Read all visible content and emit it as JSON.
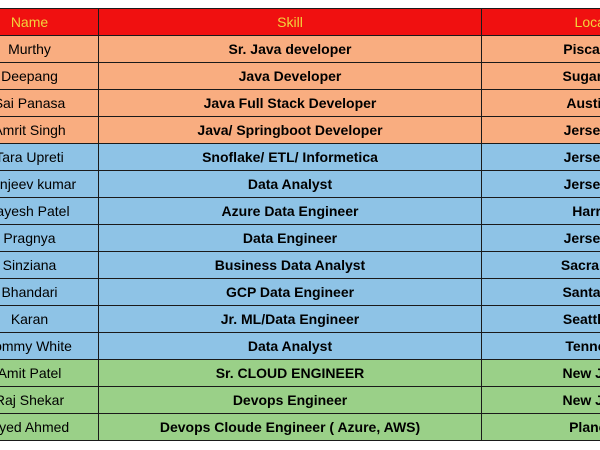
{
  "table": {
    "headers": {
      "name": "Name",
      "skill": "Skill",
      "location": "Location"
    },
    "rows": [
      {
        "name": "Murthy",
        "skill": "Sr. Java developer",
        "location": "Piscataway",
        "group": "orange"
      },
      {
        "name": "Deepang",
        "skill": "Java Developer",
        "location": "Sugar Land",
        "group": "orange"
      },
      {
        "name": "Sai Panasa",
        "skill": "Java Full Stack Developer",
        "location": "Austin, TX",
        "group": "orange"
      },
      {
        "name": "Amrit Singh",
        "skill": "Java/ Springboot Developer",
        "location": "Jersey City",
        "group": "orange"
      },
      {
        "name": "Tara Upreti",
        "skill": "Snoflake/ ETL/ Informetica",
        "location": "Jersey City",
        "group": "blue"
      },
      {
        "name": "Sanjeev kumar",
        "skill": "Data Analyst",
        "location": "Jersey City",
        "group": "blue"
      },
      {
        "name": "Jayesh Patel",
        "skill": "Azure Data Engineer",
        "location": "Harrison",
        "group": "blue"
      },
      {
        "name": "Pragnya",
        "skill": "Data Engineer",
        "location": "Jersey City",
        "group": "blue"
      },
      {
        "name": "Sinziana",
        "skill": "Business Data Analyst",
        "location": "Sacramento",
        "group": "blue"
      },
      {
        "name": "Bhandari",
        "skill": "GCP Data Engineer",
        "location": "Santa Clara",
        "group": "blue"
      },
      {
        "name": "Karan",
        "skill": "Jr. ML/Data Engineer",
        "location": "Seattle, WA",
        "group": "blue"
      },
      {
        "name": "Tommy White",
        "skill": "Data Analyst",
        "location": "Tennessee",
        "group": "blue"
      },
      {
        "name": "Amit Patel",
        "skill": "Sr. CLOUD ENGINEER",
        "location": "New Jersey",
        "group": "green"
      },
      {
        "name": "Raj Shekar",
        "skill": "Devops Engineer",
        "location": "New Jersey",
        "group": "green"
      },
      {
        "name": "Syed Ahmed",
        "skill": "Devops Cloude Engineer ( Azure, AWS)",
        "location": "Plano, TX",
        "group": "green"
      }
    ]
  }
}
